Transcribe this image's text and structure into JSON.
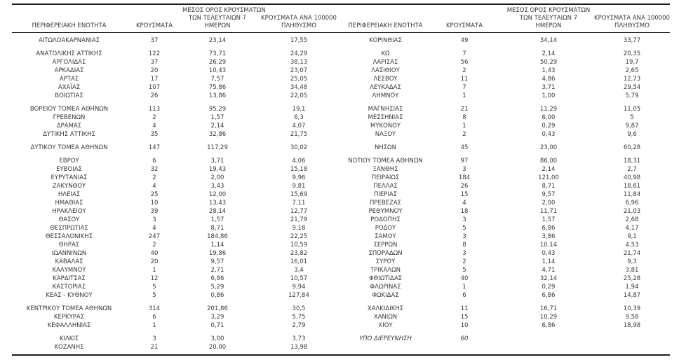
{
  "colors": {
    "text": "#383838",
    "border": "#1a1a1a",
    "background": "#ffffff"
  },
  "headers": {
    "region": "ΠΕΡΙΦΕΡΕΙΑΚΗ ΕΝΟΤΗΤΑ",
    "cases": "ΚΡΟΥΣΜΑΤΑ",
    "avg7_l1": "ΜΕΣΟΣ ΟΡΟΣ ΚΡΟΥΣΜΑΤΩΝ",
    "avg7_l2": "ΤΩΝ ΤΕΛΕΥΤΑΙΩΝ 7",
    "avg7_l3": "ΗΜΕΡΩΝ",
    "per100k_l1": "ΚΡΟΥΣΜΑΤΑ ΑΝΑ 100000",
    "per100k_l2": "ΠΛΗΘΥΣΜΟ"
  },
  "rows": [
    {
      "type": "data",
      "first": true,
      "left": [
        "ΑΙΤΩΛΟΑΚΑΡΝΑΝΙΑΣ",
        "37",
        "23,14",
        "17,55"
      ],
      "right": [
        "ΚΟΡΙΝΘΙΑΣ",
        "49",
        "34,14",
        "33,77"
      ]
    },
    {
      "type": "spacer"
    },
    {
      "type": "data",
      "left": [
        "ΑΝΑΤΟΛΙΚΗΣ ΑΤΤΙΚΗΣ",
        "122",
        "73,71",
        "24,29"
      ],
      "right": [
        "ΚΩ",
        "7",
        "2,14",
        "20,35"
      ]
    },
    {
      "type": "data",
      "left": [
        "ΑΡΓΟΛΙΔΑΣ",
        "37",
        "26,29",
        "38,13"
      ],
      "right": [
        "ΛΑΡΙΣΑΣ",
        "56",
        "50,29",
        "19,7"
      ]
    },
    {
      "type": "data",
      "left": [
        "ΑΡΚΑΔΙΑΣ",
        "20",
        "10,43",
        "23,07"
      ],
      "right": [
        "ΛΑΣΙΘΙΟΥ",
        "2",
        "1,43",
        "2,65"
      ]
    },
    {
      "type": "data",
      "left": [
        "ΑΡΤΑΣ",
        "17",
        "7,57",
        "25,05"
      ],
      "right": [
        "ΛΕΣΒΟΥ",
        "11",
        "4,86",
        "12,73"
      ]
    },
    {
      "type": "data",
      "left": [
        "ΑΧΑΪΑΣ",
        "107",
        "75,86",
        "34,48"
      ],
      "right": [
        "ΛΕΥΚΑΔΑΣ",
        "7",
        "3,71",
        "29,54"
      ]
    },
    {
      "type": "data",
      "left": [
        "ΒΟΙΩΤΙΑΣ",
        "26",
        "13,86",
        "22,05"
      ],
      "right": [
        "ΛΗΜΝΟΥ",
        "1",
        "1,00",
        "5,79"
      ]
    },
    {
      "type": "spacer"
    },
    {
      "type": "data",
      "left": [
        "ΒΟΡΕΙΟΥ ΤΟΜΕΑ ΑΘΗΝΩΝ",
        "113",
        "95,29",
        "19,1"
      ],
      "right": [
        "ΜΑΓΝΗΣΙΑΣ",
        "21",
        "11,29",
        "11,05"
      ]
    },
    {
      "type": "data",
      "left": [
        "ΓΡΕΒΕΝΩΝ",
        "2",
        "1,57",
        "6,3"
      ],
      "right": [
        "ΜΕΣΣΗΝΙΑΣ",
        "8",
        "6,00",
        "5"
      ]
    },
    {
      "type": "data",
      "left": [
        "ΔΡΑΜΑΣ",
        "4",
        "2,14",
        "4,07"
      ],
      "right": [
        "ΜΥΚΟΝΟΥ",
        "1",
        "0,29",
        "9,87"
      ]
    },
    {
      "type": "data",
      "left": [
        "ΔΥΤΙΚΗΣ ΑΤΤΙΚΗΣ",
        "35",
        "32,86",
        "21,75"
      ],
      "right": [
        "ΝΑΞΟΥ",
        "2",
        "0,43",
        "9,6"
      ]
    },
    {
      "type": "spacer"
    },
    {
      "type": "data",
      "left": [
        "ΔΥΤΙΚΟΥ ΤΟΜΕΑ ΑΘΗΝΩΝ",
        "147",
        "117,29",
        "30,02"
      ],
      "right": [
        "ΝΗΣΩΝ",
        "45",
        "23,00",
        "60,28"
      ]
    },
    {
      "type": "spacer"
    },
    {
      "type": "data",
      "left": [
        "ΕΒΡΟΥ",
        "6",
        "3,71",
        "4,06"
      ],
      "right": [
        "ΝΟΤΙΟΥ ΤΟΜΕΑ ΑΘΗΝΩΝ",
        "97",
        "86,00",
        "18,31"
      ]
    },
    {
      "type": "data",
      "left": [
        "ΕΥΒΟΙΑΣ",
        "32",
        "19,43",
        "15,18"
      ],
      "right": [
        "ΞΑΝΘΗΣ",
        "3",
        "2,14",
        "2,7"
      ]
    },
    {
      "type": "data",
      "left": [
        "ΕΥΡΥΤΑΝΙΑΣ",
        "2",
        "2,00",
        "9,96"
      ],
      "right": [
        "ΠΕΙΡΑΙΩΣ",
        "184",
        "121,00",
        "40,98"
      ]
    },
    {
      "type": "data",
      "left": [
        "ΖΑΚΥΝΘΟΥ",
        "4",
        "3,43",
        "9,81"
      ],
      "right": [
        "ΠΕΛΛΑΣ",
        "26",
        "8,71",
        "18,61"
      ]
    },
    {
      "type": "data",
      "left": [
        "ΗΛΕΙΑΣ",
        "25",
        "12,00",
        "15,69"
      ],
      "right": [
        "ΠΙΕΡΙΑΣ",
        "15",
        "9,57",
        "11,84"
      ]
    },
    {
      "type": "data",
      "left": [
        "ΗΜΑΘΙΑΣ",
        "10",
        "13,43",
        "7,11"
      ],
      "right": [
        "ΠΡΕΒΕΖΑΣ",
        "4",
        "2,00",
        "6,96"
      ]
    },
    {
      "type": "data",
      "left": [
        "ΗΡΑΚΛΕΙΟΥ",
        "39",
        "28,14",
        "12,77"
      ],
      "right": [
        "ΡΕΘΥΜΝΟΥ",
        "18",
        "11,71",
        "21,03"
      ]
    },
    {
      "type": "data",
      "left": [
        "ΘΑΣΟΥ",
        "3",
        "1,57",
        "21,79"
      ],
      "right": [
        "ΡΟΔΟΠΗΣ",
        "3",
        "1,57",
        "2,68"
      ]
    },
    {
      "type": "data",
      "left": [
        "ΘΕΣΠΡΩΤΙΑΣ",
        "4",
        "8,71",
        "9,18"
      ],
      "right": [
        "ΡΟΔΟΥ",
        "5",
        "6,86",
        "4,17"
      ]
    },
    {
      "type": "data",
      "left": [
        "ΘΕΣΣΑΛΟΝΙΚΗΣ",
        "247",
        "184,86",
        "22,25"
      ],
      "right": [
        "ΣΑΜΟΥ",
        "3",
        "3,86",
        "9,1"
      ]
    },
    {
      "type": "data",
      "left": [
        "ΘΗΡΑΣ",
        "2",
        "1,14",
        "10,59"
      ],
      "right": [
        "ΣΕΡΡΩΝ",
        "8",
        "10,14",
        "4,53"
      ]
    },
    {
      "type": "data",
      "left": [
        "ΙΩΑΝΝΙΝΩΝ",
        "40",
        "19,86",
        "23,82"
      ],
      "right": [
        "ΣΠΟΡΑΔΩΝ",
        "3",
        "0,43",
        "21,74"
      ]
    },
    {
      "type": "data",
      "left": [
        "ΚΑΒΑΛΑΣ",
        "20",
        "9,57",
        "16,01"
      ],
      "right": [
        "ΣΥΡΟΥ",
        "2",
        "1,14",
        "9,3"
      ]
    },
    {
      "type": "data",
      "left": [
        "ΚΑΛΥΜΝΟΥ",
        "1",
        "2,71",
        "3,4"
      ],
      "right": [
        "ΤΡΙΚΑΛΩΝ",
        "5",
        "4,71",
        "3,81"
      ]
    },
    {
      "type": "data",
      "left": [
        "ΚΑΡΔΙΤΣΑΣ",
        "12",
        "6,86",
        "10,57"
      ],
      "right": [
        "ΦΘΙΩΤΙΔΑΣ",
        "40",
        "32,14",
        "25,28"
      ]
    },
    {
      "type": "data",
      "left": [
        "ΚΑΣΤΟΡΙΑΣ",
        "5",
        "5,29",
        "9,94"
      ],
      "right": [
        "ΦΛΩΡΙΝΑΣ",
        "1",
        "0,29",
        "1,94"
      ]
    },
    {
      "type": "data",
      "left": [
        "ΚΕΑΣ - ΚΥΘΝΟΥ",
        "5",
        "0,86",
        "127,84"
      ],
      "right": [
        "ΦΩΚΙΔΑΣ",
        "6",
        "6,86",
        "14,87"
      ]
    },
    {
      "type": "spacer"
    },
    {
      "type": "data",
      "left": [
        "ΚΕΝΤΡΙΚΟΥ ΤΟΜΕΑ ΑΘΗΝΩΝ",
        "314",
        "201,86",
        "30,5"
      ],
      "right": [
        "ΧΑΛΚΙΔΙΚΗΣ",
        "11",
        "16,71",
        "10,39"
      ]
    },
    {
      "type": "data",
      "left": [
        "ΚΕΡΚΥΡΑΣ",
        "6",
        "3,29",
        "5,75"
      ],
      "right": [
        "ΧΑΝΙΩΝ",
        "15",
        "10,29",
        "9,58"
      ]
    },
    {
      "type": "data",
      "left": [
        "ΚΕΦΑΛΛΗΝΙΑΣ",
        "1",
        "0,71",
        "2,79"
      ],
      "right": [
        "ΧΙΟΥ",
        "10",
        "6,86",
        "18,98"
      ]
    },
    {
      "type": "spacer"
    },
    {
      "type": "data",
      "right_italic": true,
      "left": [
        "ΚΙΛΚΙΣ",
        "3",
        "3,00",
        "3,73"
      ],
      "right": [
        "ΥΠΟ ΔΙΕΡΕΥΝΗΣΗ",
        "60",
        "",
        ""
      ]
    },
    {
      "type": "data",
      "last": true,
      "left": [
        "ΚΟΖΑΝΗΣ",
        "21",
        "20,00",
        "13,98"
      ],
      "right": [
        "",
        "",
        "",
        ""
      ]
    }
  ]
}
